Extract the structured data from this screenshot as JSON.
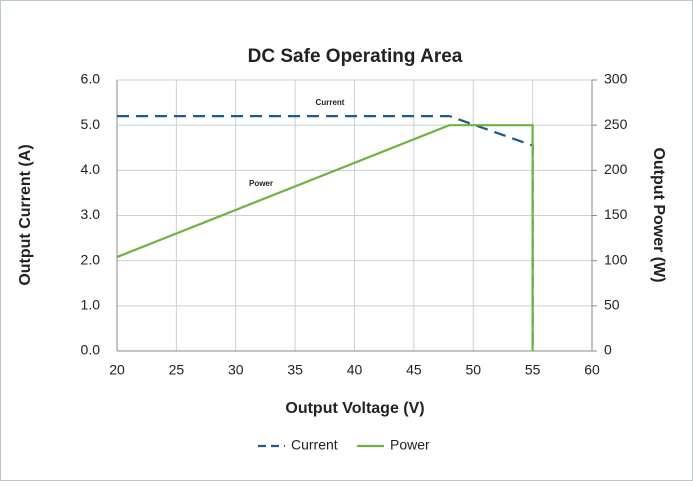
{
  "chart_data": {
    "type": "line",
    "title": "DC Safe Operating Area",
    "xlabel": "Output Voltage (V)",
    "ylabel": "Output Current (A)",
    "y2label": "Output Power (W)",
    "annotations": [
      "Current",
      "Power"
    ],
    "xlim": [
      20,
      60
    ],
    "xticks": [
      20,
      25,
      30,
      35,
      40,
      45,
      50,
      55,
      60
    ],
    "ylim": [
      0,
      6
    ],
    "yticks": [
      {
        "value": 0,
        "label": "0.0"
      },
      {
        "value": 1,
        "label": "1.0"
      },
      {
        "value": 2,
        "label": "2.0"
      },
      {
        "value": 3,
        "label": "3.0"
      },
      {
        "value": 4,
        "label": "4.0"
      },
      {
        "value": 5,
        "label": "5.0"
      },
      {
        "value": 6,
        "label": "6.0"
      }
    ],
    "y2lim": [
      0,
      300
    ],
    "y2ticks": [
      0,
      50,
      100,
      150,
      200,
      250,
      300
    ],
    "grid": true,
    "legend": "bottom",
    "series": [
      {
        "name": "Current",
        "color": "#1f5a8a",
        "dashed": true,
        "x": [
          20,
          48,
          55,
          55
        ],
        "values": [
          5.2,
          5.2,
          4.55,
          0
        ]
      },
      {
        "name": "Power",
        "color": "#6db33f",
        "axis": "y2",
        "x": [
          20,
          48,
          55,
          55
        ],
        "values": [
          104,
          250,
          250,
          0
        ]
      }
    ]
  }
}
